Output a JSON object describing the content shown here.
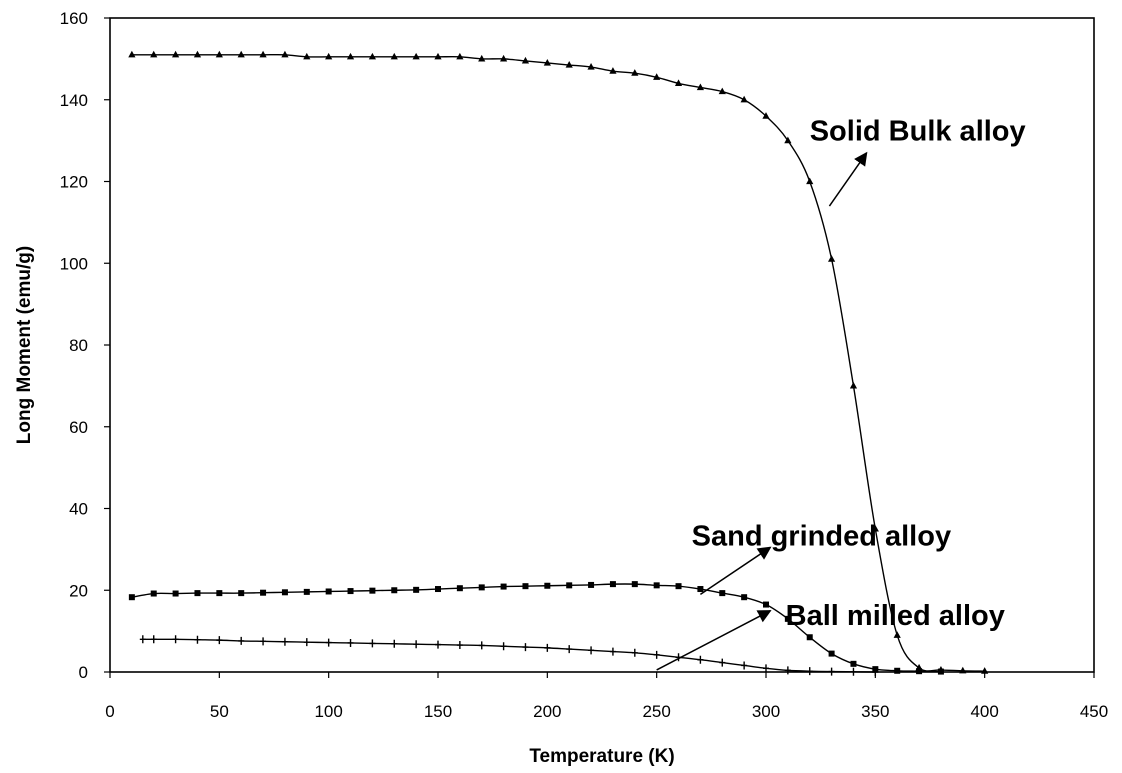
{
  "chart_data": {
    "type": "line",
    "title": "",
    "xlabel": "Temperature (K)",
    "ylabel": "Long Moment (emu/g)",
    "xlim": [
      0,
      450
    ],
    "ylim": [
      0,
      160
    ],
    "xticks": [
      0,
      50,
      100,
      150,
      200,
      250,
      300,
      350,
      400,
      450
    ],
    "yticks": [
      0,
      20,
      40,
      60,
      80,
      100,
      120,
      140,
      160
    ],
    "grid": false,
    "legend": "none",
    "series": [
      {
        "name": "Solid Bulk alloy",
        "marker": "triangle",
        "x": [
          10,
          20,
          30,
          40,
          50,
          60,
          70,
          80,
          90,
          100,
          110,
          120,
          130,
          140,
          150,
          160,
          170,
          180,
          190,
          200,
          210,
          220,
          230,
          240,
          250,
          260,
          270,
          280,
          290,
          300,
          310,
          320,
          330,
          340,
          350,
          360,
          370,
          380,
          390,
          400
        ],
        "y": [
          151,
          151,
          151,
          151,
          151,
          151,
          151,
          151,
          150.5,
          150.5,
          150.5,
          150.5,
          150.5,
          150.5,
          150.5,
          150.5,
          150,
          150,
          149.5,
          149,
          148.5,
          148,
          147,
          146.5,
          145.5,
          144,
          143,
          142,
          140,
          136,
          130,
          120,
          101,
          70,
          35,
          9,
          1,
          0.5,
          0.3,
          0.2
        ]
      },
      {
        "name": "Sand grinded alloy",
        "marker": "square",
        "x": [
          10,
          20,
          30,
          40,
          50,
          60,
          70,
          80,
          90,
          100,
          110,
          120,
          130,
          140,
          150,
          160,
          170,
          180,
          190,
          200,
          210,
          220,
          230,
          240,
          250,
          260,
          270,
          280,
          290,
          300,
          310,
          320,
          330,
          340,
          350,
          360,
          370,
          380
        ],
        "y": [
          18.3,
          19.2,
          19.2,
          19.3,
          19.3,
          19.3,
          19.4,
          19.5,
          19.6,
          19.7,
          19.8,
          19.9,
          20,
          20.1,
          20.3,
          20.5,
          20.7,
          20.9,
          21,
          21.1,
          21.2,
          21.3,
          21.5,
          21.5,
          21.2,
          21,
          20.3,
          19.3,
          18.3,
          16.5,
          13,
          8.5,
          4.5,
          2,
          0.7,
          0.3,
          0.2,
          0.1
        ]
      },
      {
        "name": "Ball milled alloy",
        "marker": "cross",
        "x": [
          15,
          20,
          30,
          40,
          50,
          60,
          70,
          80,
          90,
          100,
          110,
          120,
          130,
          140,
          150,
          160,
          170,
          180,
          190,
          200,
          210,
          220,
          230,
          240,
          250,
          260,
          270,
          280,
          290,
          300,
          310,
          320,
          330,
          340,
          350
        ],
        "y": [
          8,
          8,
          8,
          7.9,
          7.8,
          7.6,
          7.5,
          7.4,
          7.3,
          7.2,
          7.1,
          7,
          6.9,
          6.8,
          6.7,
          6.6,
          6.5,
          6.3,
          6.1,
          5.9,
          5.6,
          5.3,
          5,
          4.7,
          4.2,
          3.6,
          3,
          2.3,
          1.6,
          0.9,
          0.4,
          0.2,
          0.1,
          0.05,
          0
        ]
      }
    ],
    "annotations": [
      {
        "text": "Solid Bulk alloy",
        "text_x": 320,
        "text_y": 130,
        "arrow_from": [
          329,
          114
        ],
        "arrow_to": [
          346,
          127
        ]
      },
      {
        "text": "Sand grinded alloy",
        "text_x": 266,
        "text_y": 31,
        "arrow_from": [
          270,
          19
        ],
        "arrow_to": [
          302,
          30.5
        ]
      },
      {
        "text": "Ball milled alloy",
        "text_x": 309,
        "text_y": 11.5,
        "arrow_from": [
          250,
          0.5
        ],
        "arrow_to": [
          302,
          15
        ]
      }
    ]
  }
}
